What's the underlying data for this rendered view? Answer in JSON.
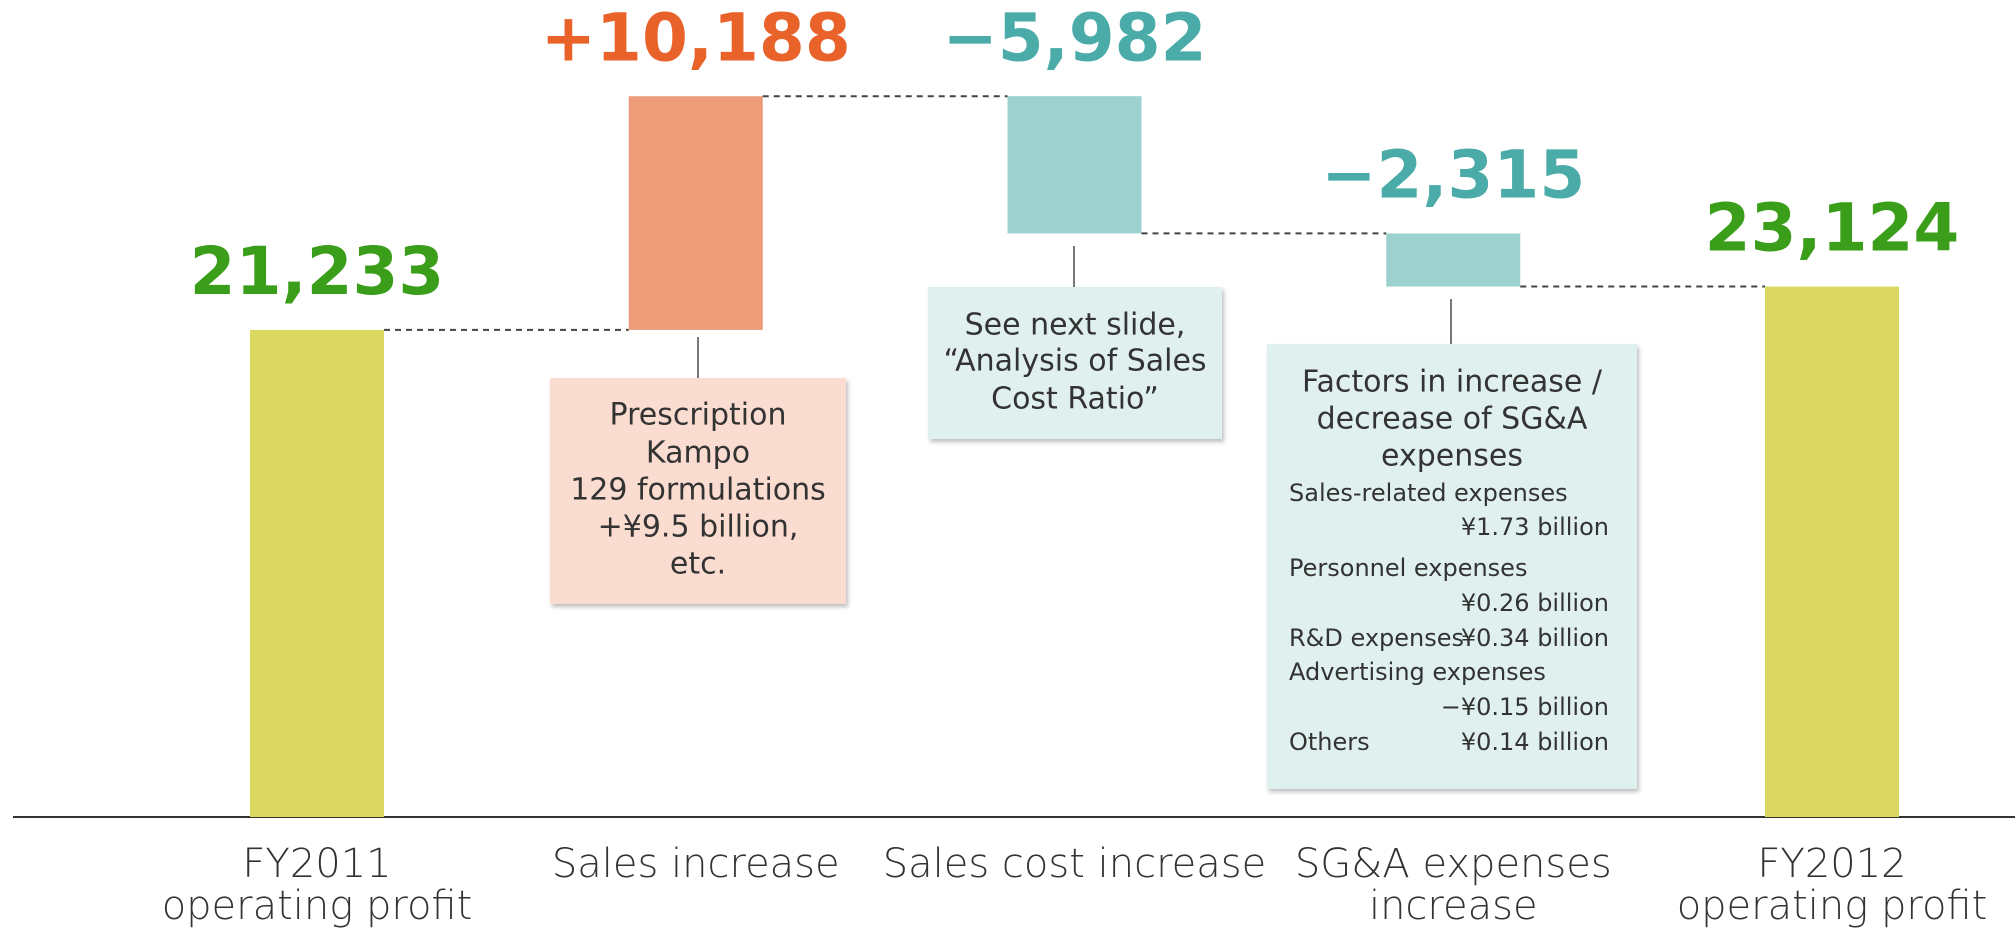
{
  "chart_data": {
    "type": "waterfall",
    "categories": [
      [
        "FY2011",
        "operating profit"
      ],
      [
        "Sales increase"
      ],
      [
        "Sales cost increase"
      ],
      [
        "SG&A expenses",
        "increase"
      ],
      [
        "FY2012",
        "operating profit"
      ]
    ],
    "values": [
      21233,
      10188,
      -5982,
      -2315,
      23124
    ],
    "value_labels": [
      "21,233",
      "+10,188",
      "−5,982",
      "−2,315",
      "23,124"
    ],
    "colors": [
      "#dbd862",
      "#ed9b79",
      "#9dd1cf",
      "#9dd1cf",
      "#dbd862"
    ],
    "label_colors": [
      "#3a9e1a",
      "#e8622a",
      "#4aaba9",
      "#4aaba9",
      "#3a9e1a"
    ],
    "annotations": [
      {
        "lines": [
          "Prescription",
          "Kampo",
          "129 formulations",
          "+¥9.5 billion,",
          "etc."
        ]
      },
      {
        "lines": [
          "See next slide,",
          "“Analysis of Sales",
          "Cost Ratio”"
        ]
      },
      {
        "title": [
          "Factors in increase /",
          "decrease of SG&A",
          "expenses"
        ],
        "items": [
          {
            "label": "Sales-related expenses",
            "value": "¥1.73 billion"
          },
          {
            "label": "Personnel expenses",
            "value": "¥0.26 billion"
          },
          {
            "label": "R&D expenses",
            "value": "¥0.34 billion"
          },
          {
            "label": "Advertising expenses",
            "value": "−¥0.15 billion"
          },
          {
            "label": "Others",
            "value": "¥0.14 billion"
          }
        ]
      }
    ]
  }
}
